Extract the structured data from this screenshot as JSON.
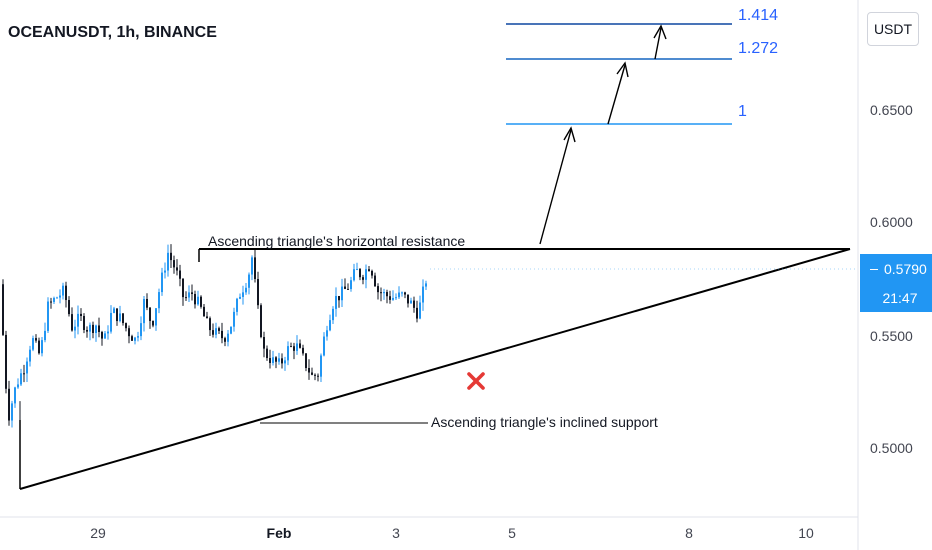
{
  "header": {
    "title": "OCEANUSDT, 1h, BINANCE"
  },
  "currency_button": {
    "label": "USDT"
  },
  "last_price": {
    "label": "0.5790",
    "countdown": "21:47"
  },
  "colors": {
    "bull": "#2196f3",
    "bear": "#131722",
    "fib": "#2962ff",
    "line": "#000000",
    "invalid": "#e53935",
    "price_tag": "#2196f3"
  },
  "annotations": {
    "resistance": "Ascending triangle's horizontal resistance",
    "support": "Ascending triangle's inclined support",
    "invalidation_icon": "x-mark-icon"
  },
  "chart_data": {
    "type": "candlestick",
    "title": "OCEANUSDT, 1h, BINANCE",
    "xlabel": "",
    "ylabel": "",
    "x_ticks": [
      "29",
      "Feb",
      "3",
      "5",
      "8",
      "10"
    ],
    "y_ticks": [
      "0.5000",
      "0.5500",
      "0.6000",
      "0.6500"
    ],
    "ylim": [
      0.4665,
      0.6595
    ],
    "last_price": 0.579,
    "fib_levels": [
      {
        "label": "1",
        "price": 0.645
      },
      {
        "label": "1.272",
        "price": 0.6725
      },
      {
        "label": "1.414",
        "price": 0.6885
      }
    ],
    "resistance_price": 0.5876,
    "support_line": {
      "start_price": 0.481,
      "end_price": 0.5876
    },
    "close_anchors": [
      [
        0,
        0.572
      ],
      [
        8,
        0.512
      ],
      [
        16,
        0.527
      ],
      [
        24,
        0.535
      ],
      [
        32,
        0.548
      ],
      [
        40,
        0.54
      ],
      [
        48,
        0.562
      ],
      [
        56,
        0.566
      ],
      [
        64,
        0.569
      ],
      [
        72,
        0.553
      ],
      [
        80,
        0.557
      ],
      [
        88,
        0.552
      ],
      [
        96,
        0.554
      ],
      [
        104,
        0.546
      ],
      [
        112,
        0.56
      ],
      [
        120,
        0.557
      ],
      [
        128,
        0.551
      ],
      [
        136,
        0.547
      ],
      [
        144,
        0.564
      ],
      [
        152,
        0.554
      ],
      [
        160,
        0.571
      ],
      [
        168,
        0.586
      ],
      [
        176,
        0.578
      ],
      [
        184,
        0.565
      ],
      [
        192,
        0.568
      ],
      [
        200,
        0.562
      ],
      [
        208,
        0.553
      ],
      [
        216,
        0.55
      ],
      [
        224,
        0.548
      ],
      [
        232,
        0.555
      ],
      [
        240,
        0.568
      ],
      [
        248,
        0.575
      ],
      [
        252,
        0.584
      ],
      [
        258,
        0.56
      ],
      [
        264,
        0.542
      ],
      [
        272,
        0.538
      ],
      [
        280,
        0.536
      ],
      [
        288,
        0.543
      ],
      [
        296,
        0.545
      ],
      [
        304,
        0.538
      ],
      [
        312,
        0.531
      ],
      [
        318,
        0.532
      ],
      [
        326,
        0.553
      ],
      [
        334,
        0.565
      ],
      [
        342,
        0.568
      ],
      [
        350,
        0.572
      ],
      [
        356,
        0.578
      ],
      [
        362,
        0.576
      ],
      [
        370,
        0.581
      ],
      [
        378,
        0.569
      ],
      [
        386,
        0.567
      ],
      [
        394,
        0.566
      ],
      [
        402,
        0.567
      ],
      [
        410,
        0.564
      ],
      [
        418,
        0.559
      ],
      [
        424,
        0.57
      ],
      [
        428,
        0.578
      ]
    ]
  }
}
